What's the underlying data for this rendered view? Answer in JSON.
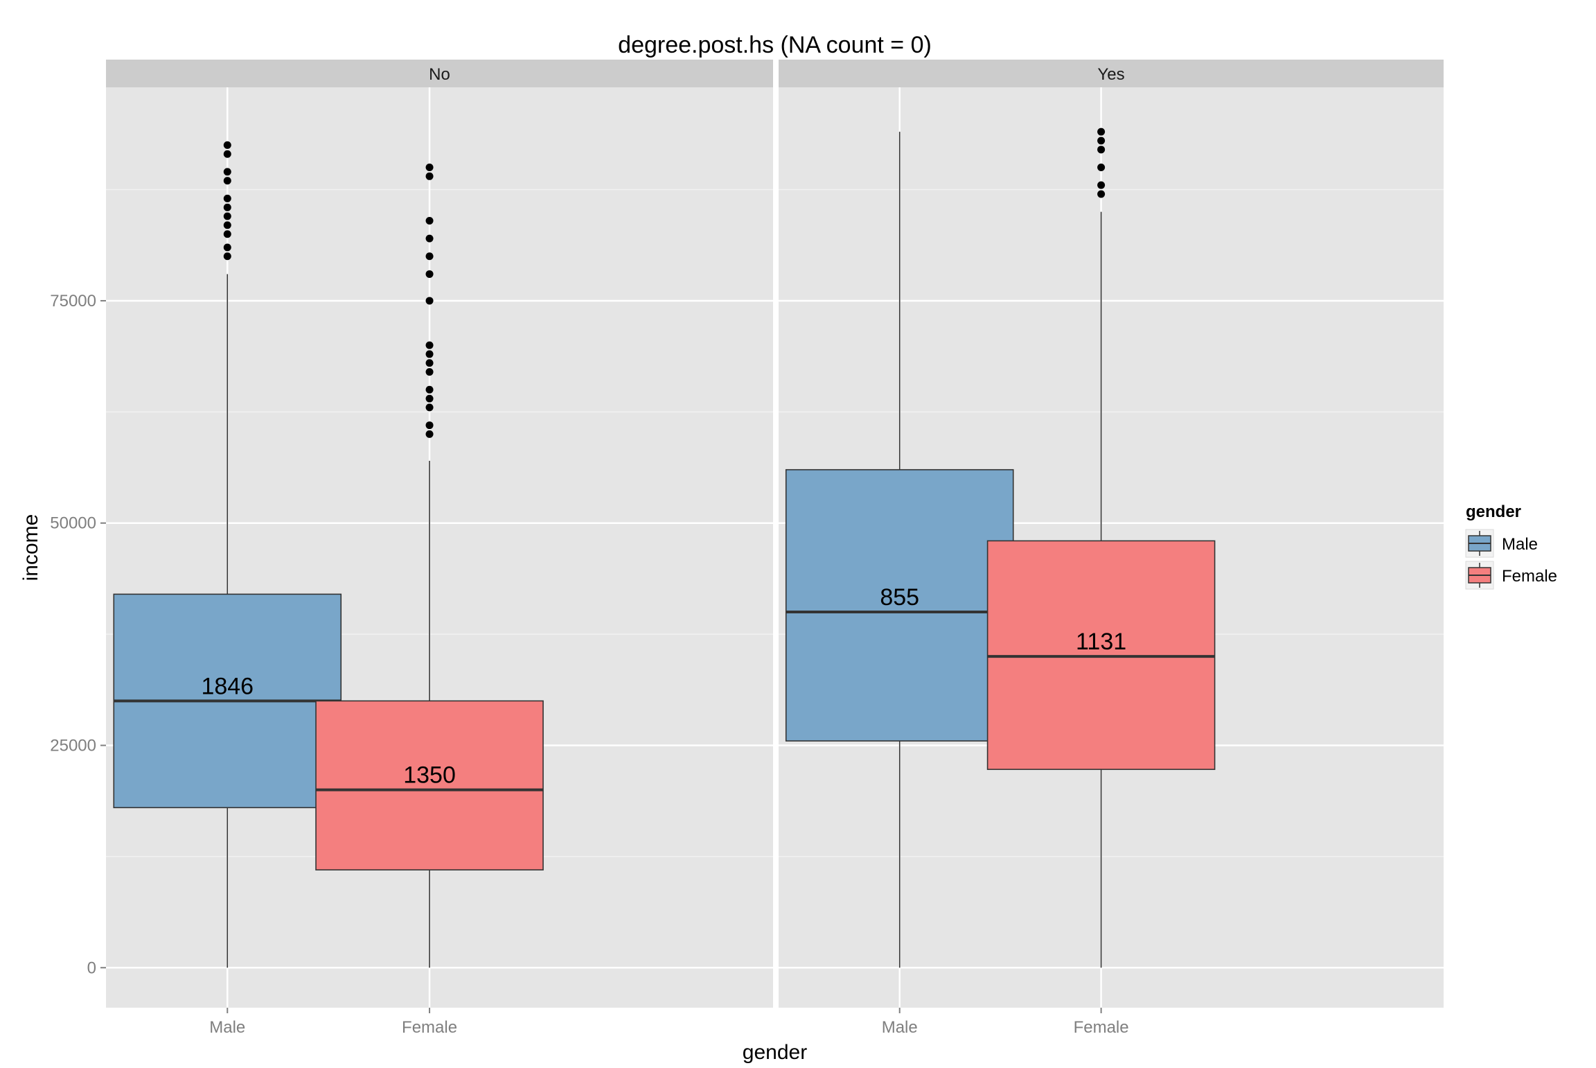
{
  "chart_data": {
    "type": "boxplot",
    "title": "degree.post.hs (NA count = 0)",
    "xlabel": "gender",
    "ylabel": "income",
    "ylim": [
      -4500,
      99000
    ],
    "y_ticks": [
      0,
      25000,
      50000,
      75000
    ],
    "y_tick_labels": [
      "0",
      "25000",
      "50000",
      "75000"
    ],
    "categories": [
      "Male",
      "Female"
    ],
    "facet_variable": "degree.post.hs",
    "grid": true,
    "legend": {
      "title": "gender",
      "position": "right",
      "entries": [
        {
          "label": "Male",
          "color": "#79A6C9"
        },
        {
          "label": "Female",
          "color": "#F47F7F"
        }
      ]
    },
    "panels": [
      {
        "label": "No",
        "boxes": [
          {
            "category": "Male",
            "count_label": "1846",
            "lower_whisker": 0,
            "q1": 18000,
            "median": 30000,
            "q3": 42000,
            "upper_whisker": 78000,
            "outliers": [
              80000,
              81000,
              82500,
              83500,
              84500,
              85500,
              86500,
              88500,
              89500,
              91500,
              92500
            ]
          },
          {
            "category": "Female",
            "count_label": "1350",
            "lower_whisker": 0,
            "q1": 11000,
            "median": 20000,
            "q3": 30000,
            "upper_whisker": 57000,
            "outliers": [
              60000,
              61000,
              63000,
              64000,
              65000,
              67000,
              68000,
              69000,
              70000,
              75000,
              78000,
              80000,
              82000,
              84000,
              89000,
              90000
            ]
          }
        ]
      },
      {
        "label": "Yes",
        "boxes": [
          {
            "category": "Male",
            "count_label": "855",
            "lower_whisker": 0,
            "q1": 25500,
            "median": 40000,
            "q3": 56000,
            "upper_whisker": 94000,
            "outliers": []
          },
          {
            "category": "Female",
            "count_label": "1131",
            "lower_whisker": 0,
            "q1": 22300,
            "median": 35000,
            "q3": 48000,
            "upper_whisker": 85000,
            "outliers": [
              87000,
              88000,
              90000,
              92000,
              93000,
              94000
            ]
          }
        ]
      }
    ]
  },
  "colors": {
    "panel_background": "#E5E5E5",
    "strip_background": "#CCCCCC",
    "grid_major": "#FFFFFF",
    "male_fill": "#79A6C9",
    "female_fill": "#F47F7F",
    "axis_text": "#7F7F7F"
  }
}
